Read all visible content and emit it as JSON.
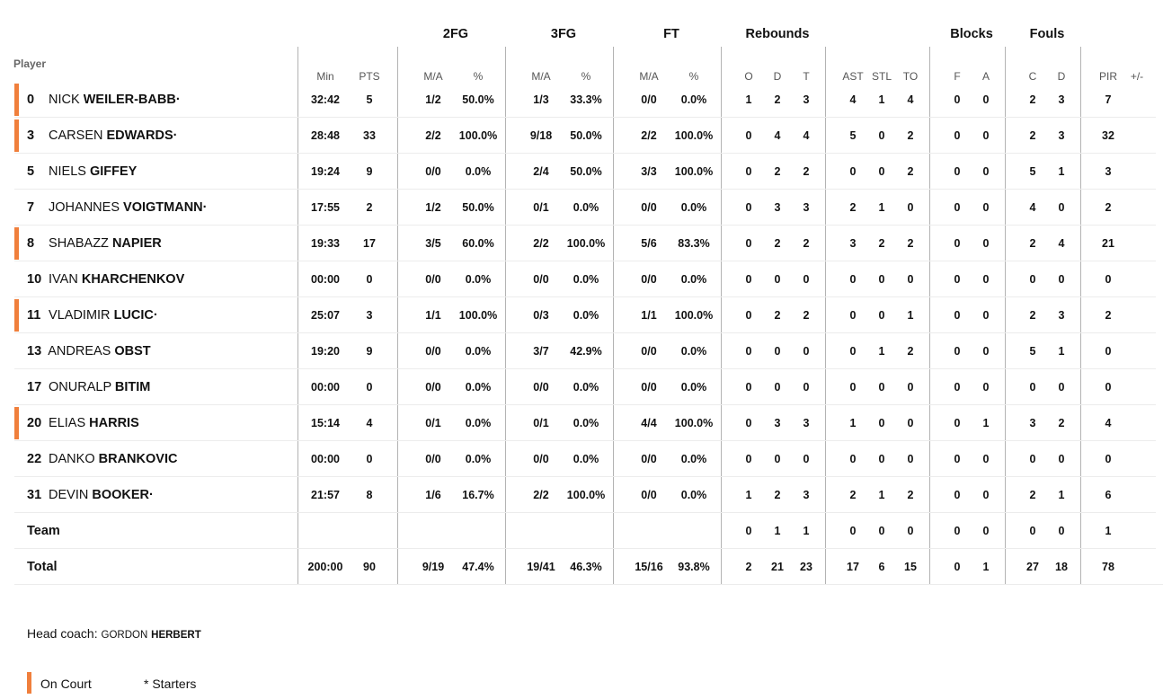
{
  "group_headers": [
    "2FG",
    "3FG",
    "FT",
    "Rebounds",
    "Blocks",
    "Fouls"
  ],
  "player_header": "Player",
  "col_headers": [
    "Min",
    "PTS",
    "M/A",
    "%",
    "M/A",
    "%",
    "M/A",
    "%",
    "O",
    "D",
    "T",
    "AST",
    "STL",
    "TO",
    "F",
    "A",
    "C",
    "D",
    "PIR",
    "+/-"
  ],
  "rows": [
    {
      "num": "0",
      "first": "NICK",
      "last": "WEILER-BABB·",
      "on_court": true,
      "stats": [
        "32:42",
        "5",
        "1/2",
        "50.0%",
        "1/3",
        "33.3%",
        "0/0",
        "0.0%",
        "1",
        "2",
        "3",
        "4",
        "1",
        "4",
        "0",
        "0",
        "2",
        "3",
        "7",
        ""
      ]
    },
    {
      "num": "3",
      "first": "CARSEN",
      "last": "EDWARDS·",
      "on_court": true,
      "stats": [
        "28:48",
        "33",
        "2/2",
        "100.0%",
        "9/18",
        "50.0%",
        "2/2",
        "100.0%",
        "0",
        "4",
        "4",
        "5",
        "0",
        "2",
        "0",
        "0",
        "2",
        "3",
        "32",
        ""
      ]
    },
    {
      "num": "5",
      "first": "NIELS",
      "last": "GIFFEY",
      "on_court": false,
      "stats": [
        "19:24",
        "9",
        "0/0",
        "0.0%",
        "2/4",
        "50.0%",
        "3/3",
        "100.0%",
        "0",
        "2",
        "2",
        "0",
        "0",
        "2",
        "0",
        "0",
        "5",
        "1",
        "3",
        ""
      ]
    },
    {
      "num": "7",
      "first": "JOHANNES",
      "last": "VOIGTMANN·",
      "on_court": false,
      "stats": [
        "17:55",
        "2",
        "1/2",
        "50.0%",
        "0/1",
        "0.0%",
        "0/0",
        "0.0%",
        "0",
        "3",
        "3",
        "2",
        "1",
        "0",
        "0",
        "0",
        "4",
        "0",
        "2",
        ""
      ]
    },
    {
      "num": "8",
      "first": "SHABAZZ",
      "last": "NAPIER",
      "on_court": true,
      "stats": [
        "19:33",
        "17",
        "3/5",
        "60.0%",
        "2/2",
        "100.0%",
        "5/6",
        "83.3%",
        "0",
        "2",
        "2",
        "3",
        "2",
        "2",
        "0",
        "0",
        "2",
        "4",
        "21",
        ""
      ]
    },
    {
      "num": "10",
      "first": "IVAN",
      "last": "KHARCHENKOV",
      "on_court": false,
      "stats": [
        "00:00",
        "0",
        "0/0",
        "0.0%",
        "0/0",
        "0.0%",
        "0/0",
        "0.0%",
        "0",
        "0",
        "0",
        "0",
        "0",
        "0",
        "0",
        "0",
        "0",
        "0",
        "0",
        ""
      ]
    },
    {
      "num": "11",
      "first": "VLADIMIR",
      "last": "LUCIC·",
      "on_court": true,
      "stats": [
        "25:07",
        "3",
        "1/1",
        "100.0%",
        "0/3",
        "0.0%",
        "1/1",
        "100.0%",
        "0",
        "2",
        "2",
        "0",
        "0",
        "1",
        "0",
        "0",
        "2",
        "3",
        "2",
        ""
      ]
    },
    {
      "num": "13",
      "first": "ANDREAS",
      "last": "OBST",
      "on_court": false,
      "stats": [
        "19:20",
        "9",
        "0/0",
        "0.0%",
        "3/7",
        "42.9%",
        "0/0",
        "0.0%",
        "0",
        "0",
        "0",
        "0",
        "1",
        "2",
        "0",
        "0",
        "5",
        "1",
        "0",
        ""
      ]
    },
    {
      "num": "17",
      "first": "ONURALP",
      "last": "BITIM",
      "on_court": false,
      "stats": [
        "00:00",
        "0",
        "0/0",
        "0.0%",
        "0/0",
        "0.0%",
        "0/0",
        "0.0%",
        "0",
        "0",
        "0",
        "0",
        "0",
        "0",
        "0",
        "0",
        "0",
        "0",
        "0",
        ""
      ]
    },
    {
      "num": "20",
      "first": "ELIAS",
      "last": "HARRIS",
      "on_court": true,
      "stats": [
        "15:14",
        "4",
        "0/1",
        "0.0%",
        "0/1",
        "0.0%",
        "4/4",
        "100.0%",
        "0",
        "3",
        "3",
        "1",
        "0",
        "0",
        "0",
        "1",
        "3",
        "2",
        "4",
        ""
      ]
    },
    {
      "num": "22",
      "first": "DANKO",
      "last": "BRANKOVIC",
      "on_court": false,
      "stats": [
        "00:00",
        "0",
        "0/0",
        "0.0%",
        "0/0",
        "0.0%",
        "0/0",
        "0.0%",
        "0",
        "0",
        "0",
        "0",
        "0",
        "0",
        "0",
        "0",
        "0",
        "0",
        "0",
        ""
      ]
    },
    {
      "num": "31",
      "first": "DEVIN",
      "last": "BOOKER·",
      "on_court": false,
      "stats": [
        "21:57",
        "8",
        "1/6",
        "16.7%",
        "2/2",
        "100.0%",
        "0/0",
        "0.0%",
        "1",
        "2",
        "3",
        "2",
        "1",
        "2",
        "0",
        "0",
        "2",
        "1",
        "6",
        ""
      ]
    }
  ],
  "team_row": {
    "label": "Team",
    "stats": [
      "",
      "",
      "",
      "",
      "",
      "",
      "",
      "",
      "0",
      "1",
      "1",
      "0",
      "0",
      "0",
      "0",
      "0",
      "0",
      "0",
      "1",
      ""
    ]
  },
  "total_row": {
    "label": "Total",
    "stats": [
      "200:00",
      "90",
      "9/19",
      "47.4%",
      "19/41",
      "46.3%",
      "15/16",
      "93.8%",
      "2",
      "21",
      "23",
      "17",
      "6",
      "15",
      "0",
      "1",
      "27",
      "18",
      "78",
      ""
    ]
  },
  "coach": {
    "label": "Head coach:",
    "first": "GORDON",
    "last": "HERBERT"
  },
  "legend": {
    "on_court": "On Court",
    "starters": "* Starters"
  },
  "colors": {
    "on_court_marker": "#f07f3c",
    "divider": "#b3b3b3",
    "row_separator": "#ececec"
  }
}
